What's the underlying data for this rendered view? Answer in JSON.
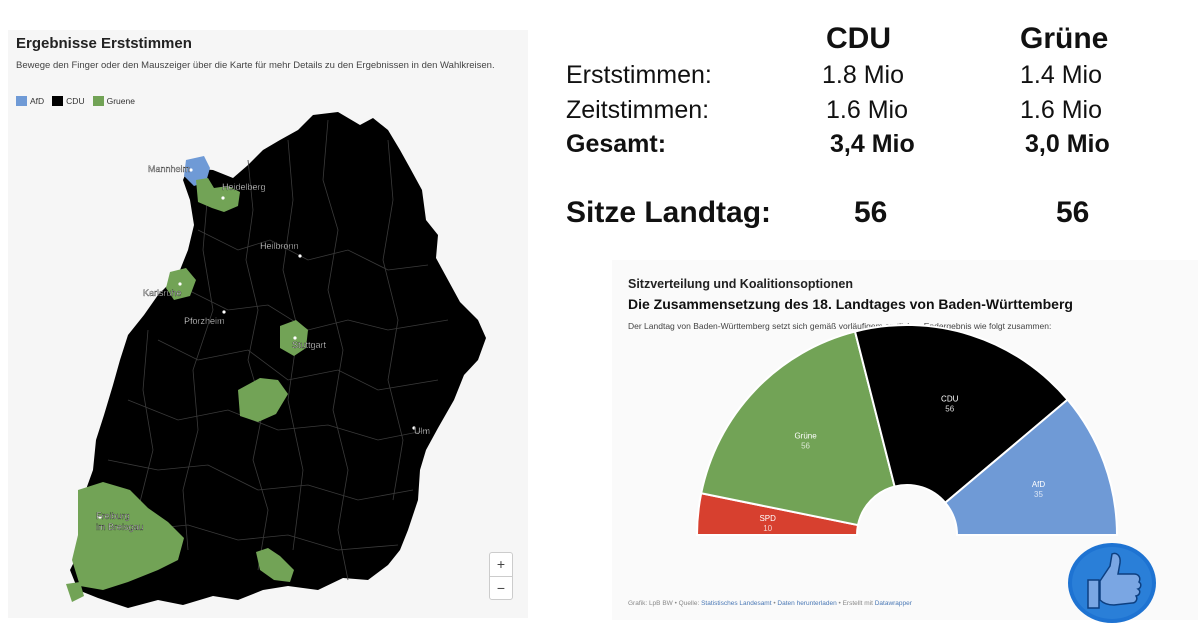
{
  "map": {
    "title": "Ergebnisse Erststimmen",
    "subtitle": "Bewege den Finger oder den Mauszeiger über die Karte für mehr Details zu den Ergebnissen in den Wahlkreisen.",
    "legend": [
      {
        "label": "AfD",
        "color": "#6f9ad6"
      },
      {
        "label": "CDU",
        "color": "#000000"
      },
      {
        "label": "Gruene",
        "color": "#72a356"
      }
    ],
    "cities": [
      "Mannheim",
      "Heidelberg",
      "Heilbronn",
      "Karlsruhe",
      "Pforzheim",
      "Stuttgart",
      "Ulm",
      "Freiburg",
      "im Breisgau"
    ],
    "zoom_in": "+",
    "zoom_out": "−",
    "region_colors": {
      "cdu": "#000000",
      "gruene": "#72a356",
      "afd": "#6f9ad6"
    }
  },
  "stats": {
    "party_1": "CDU",
    "party_2": "Grüne",
    "rows": [
      {
        "label": "Erststimmen:",
        "v1": "1.8 Mio",
        "v2": "1.4 Mio"
      },
      {
        "label": "Zeitstimmen:",
        "v1": "1.6 Mio",
        "v2": "1.6 Mio"
      },
      {
        "label": "Gesamt:",
        "v1": "3,4 Mio",
        "v2": "3,0 Mio"
      }
    ],
    "seats_label": "Sitze Landtag:",
    "seats_1": "56",
    "seats_2": "56"
  },
  "seat_chart": {
    "kicker": "Sitzverteilung und Koalitionsoptionen",
    "title": "Die Zusammensetzung des 18. Landtages von Baden-Württemberg",
    "description": "Der Landtag von Baden-Württemberg setzt sich gemäß vorläufigem amtlichen Endergebnis wie folgt zusammen:",
    "source_prefix": "Grafik: LpB BW • Quelle: ",
    "source_link_1": "Statistisches Landesamt",
    "source_sep": " • ",
    "source_link_2": "Daten herunterladen",
    "source_mid": " • Erstellt mit ",
    "source_link_3": "Datawrapper"
  },
  "chart_data": {
    "type": "pie",
    "subtype": "parliament-half-donut",
    "title": "Die Zusammensetzung des 18. Landtages von Baden-Württemberg",
    "series": [
      {
        "name": "SPD",
        "value": 10,
        "color": "#d7402f"
      },
      {
        "name": "Grüne",
        "value": 56,
        "color": "#72a356"
      },
      {
        "name": "CDU",
        "value": 56,
        "color": "#000000"
      },
      {
        "name": "AfD",
        "value": 35,
        "color": "#6f9ad6"
      }
    ]
  },
  "icons": {
    "thumb": "thumbs-up-icon",
    "thumb_bg": "#1e73d2",
    "thumb_color": "#7aa6e3"
  }
}
